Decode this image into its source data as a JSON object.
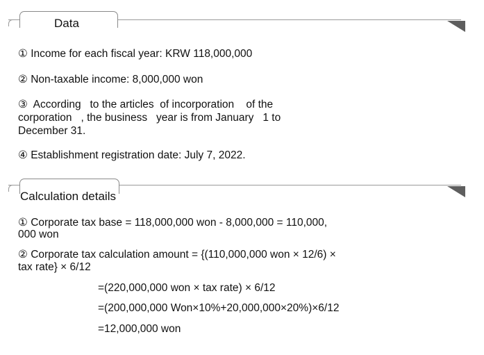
{
  "data_section": {
    "title": "Data",
    "items": [
      "① Income for each fiscal year: KRW 118,000,000",
      "② Non-taxable income: 8,000,000 won",
      "③  According   to the articles  of incorporation    of the",
      "corporation   , the business   year is from January   1 to",
      "December 31.",
      "④ Establishment registration date: July 7, 2022."
    ]
  },
  "calc_section": {
    "title": "Calculation details",
    "items": [
      "① Corporate tax base = 118,000,000 won - 8,000,000 = 110,000,",
      "000 won",
      "② Corporate tax calculation amount = {(110,000,000 won × 12/6) ×",
      "tax rate} × 6/12",
      "=(220,000,000 won × tax rate) × 6/12",
      "=(200,000,000 Won×10%+20,000,000×20%)×6/12",
      "=12,000,000 won"
    ]
  }
}
